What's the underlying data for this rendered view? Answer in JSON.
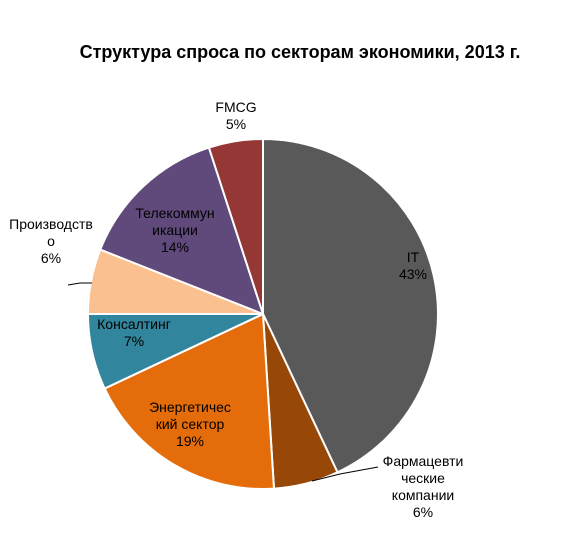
{
  "chart_data": {
    "type": "pie",
    "title": "Структура спроса по секторам экономики, 2013 г.",
    "slices": [
      {
        "name": "IT",
        "value": 43,
        "value_label": "43%",
        "color": "#595959",
        "label_lines": [
          "IT",
          "43%"
        ]
      },
      {
        "name": "Фармацевтические компании",
        "value": 6,
        "value_label": "6%",
        "color": "#974706",
        "label_lines": [
          "Фармацевти",
          "ческие",
          "компании",
          "6%"
        ]
      },
      {
        "name": "Энергетический сектор",
        "value": 19,
        "value_label": "19%",
        "color": "#e46c0a",
        "label_lines": [
          "Энергетичес",
          "кий сектор",
          "19%"
        ]
      },
      {
        "name": "Консалтинг",
        "value": 7,
        "value_label": "7%",
        "color": "#31859c",
        "label_lines": [
          "Консалтинг",
          "7%"
        ]
      },
      {
        "name": "Производство",
        "value": 6,
        "value_label": "6%",
        "color": "#fac090",
        "label_lines": [
          "Производств",
          "о",
          "6%"
        ]
      },
      {
        "name": "Телекоммуникации",
        "value": 14,
        "value_label": "14%",
        "color": "#604a7b",
        "label_lines": [
          "Телекоммун",
          "икации",
          "14%"
        ]
      },
      {
        "name": "FMCG",
        "value": 5,
        "value_label": "5%",
        "color": "#953735",
        "label_lines": [
          "FMCG",
          "5%"
        ]
      }
    ]
  }
}
